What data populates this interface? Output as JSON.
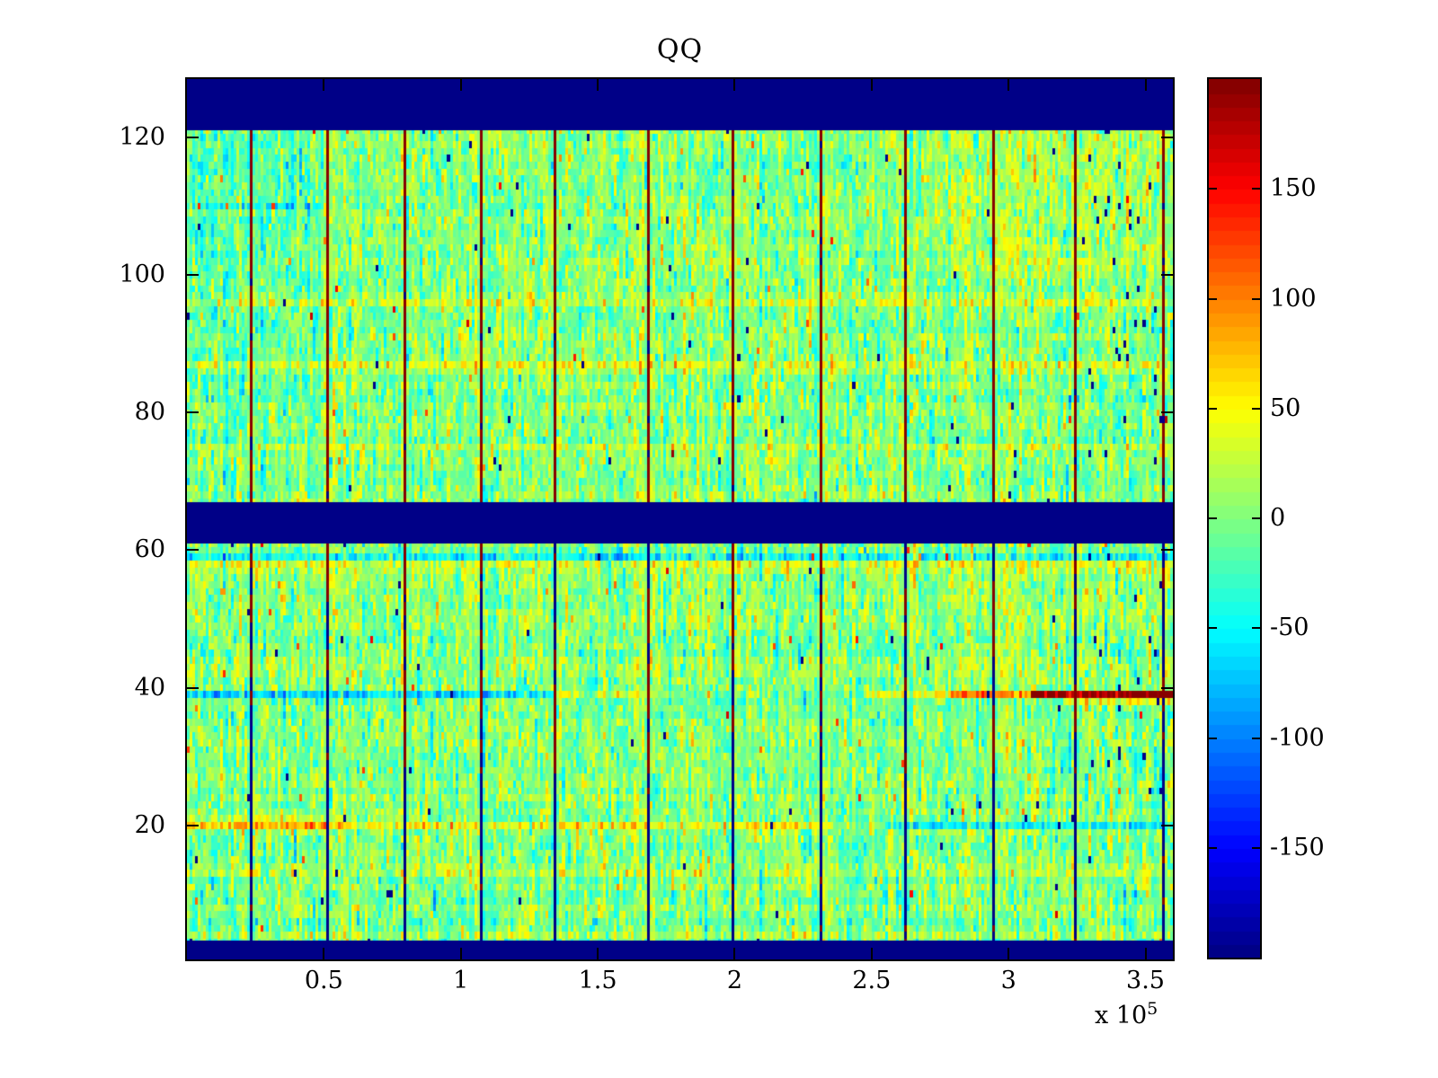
{
  "figure": {
    "background": "#ffffff",
    "frame_color": "#000000",
    "text_color": "#000000"
  },
  "chart_data": {
    "type": "heatmap",
    "title": "QQ",
    "colormap": "jet",
    "colormap_steps": 64,
    "clim": [
      -200,
      200
    ],
    "grid": false,
    "legend": "colorbar-right",
    "x_axis": {
      "range": [
        0,
        360000
      ],
      "ticks": [
        50000,
        100000,
        150000,
        200000,
        250000,
        300000,
        350000
      ],
      "tick_labels": [
        "0.5",
        "1",
        "1.5",
        "2",
        "2.5",
        "3",
        "3.5"
      ],
      "offset_base": "x 10",
      "offset_exp": "5"
    },
    "y_axis": {
      "range": [
        0.5,
        128.5
      ],
      "ticks": [
        20,
        40,
        60,
        80,
        100,
        120
      ],
      "tick_labels": [
        "20",
        "40",
        "60",
        "80",
        "100",
        "120"
      ]
    },
    "colorbar": {
      "ticks": [
        150,
        100,
        50,
        0,
        -50,
        -100,
        -150
      ],
      "tick_labels": [
        "150",
        "100",
        "50",
        "0",
        "-50",
        "-100",
        "-150"
      ]
    },
    "matrix": {
      "rows": 128,
      "cols": 360,
      "blank_band_row_ranges": [
        [
          0.5,
          3.2
        ],
        [
          60.95,
          66.95
        ],
        [
          121.1,
          128.5
        ]
      ],
      "vertical_line_x": [
        23000,
        51000,
        79000,
        107000,
        134000,
        168000,
        199000,
        231000,
        262000,
        294000,
        324000,
        356000
      ],
      "row_streaks": [
        {
          "row": 20,
          "segments": [
            [
              0,
              60000,
              75
            ],
            [
              60000,
              230000,
              38
            ],
            [
              230000,
              255000,
              5
            ],
            [
              255000,
              360000,
              -52
            ]
          ]
        },
        {
          "row": 21,
          "segments": [
            [
              0,
              60000,
              26
            ]
          ]
        },
        {
          "row": 39,
          "segments": [
            [
              0,
              135000,
              -72
            ],
            [
              135000,
              178000,
              15
            ],
            [
              178000,
              248000,
              -18
            ],
            [
              248000,
              278000,
              40
            ],
            [
              278000,
              308000,
              85
            ],
            [
              308000,
              360000,
              195
            ]
          ]
        },
        {
          "row": 38,
          "segments": [
            [
              320000,
              360000,
              55
            ]
          ]
        },
        {
          "row": 59,
          "segments": [
            [
              0,
              360000,
              -45
            ]
          ]
        },
        {
          "row": 60,
          "segments": [
            [
              0,
              360000,
              -10
            ]
          ]
        },
        {
          "row": 58,
          "segments": [
            [
              0,
              360000,
              28
            ]
          ]
        },
        {
          "row": 57,
          "segments": [
            [
              0,
              360000,
              24
            ]
          ]
        },
        {
          "row": 47,
          "segments": [
            [
              0,
              360000,
              -12
            ]
          ]
        },
        {
          "row": 96,
          "segments": [
            [
              0,
              360000,
              30
            ]
          ]
        },
        {
          "row": 87,
          "segments": [
            [
              0,
              360000,
              30
            ]
          ]
        },
        {
          "row": 86,
          "segments": [
            [
              0,
              360000,
              14
            ]
          ]
        },
        {
          "row": 75,
          "segments": [
            [
              0,
              360000,
              16
            ]
          ]
        },
        {
          "row": 13,
          "segments": [
            [
              0,
              360000,
              22
            ]
          ]
        },
        {
          "row": 8,
          "segments": [
            [
              0,
              360000,
              18
            ]
          ]
        },
        {
          "row": 4,
          "segments": [
            [
              0,
              360000,
              20
            ]
          ]
        },
        {
          "row": 110,
          "segments": [
            [
              0,
              50000,
              -22
            ]
          ]
        },
        {
          "row": 108,
          "segments": [
            [
              0,
              50000,
              -18
            ]
          ]
        }
      ],
      "region_offsets": [
        {
          "rows": [
            100,
            121
          ],
          "x": [
            0,
            45000
          ],
          "offset": -14
        },
        {
          "rows": [
            68,
            99
          ],
          "x": [
            0,
            50000
          ],
          "offset": -7
        },
        {
          "rows": [
            100,
            121
          ],
          "x": [
            270000,
            360000
          ],
          "offset": 13
        },
        {
          "rows": [
            40,
            60
          ],
          "x": [
            285000,
            360000
          ],
          "offset": 7
        },
        {
          "rows": [
            4,
            12
          ],
          "x": [
            0,
            360000
          ],
          "offset": -5
        }
      ],
      "noise": {
        "mean": 4,
        "run_std": 22,
        "run_keep_prob": 0.55,
        "cell_std": 13,
        "col_std": 7,
        "row_std": 5,
        "speckle_neg_prob": 0.0025,
        "speckle_pos_prob": 0.003,
        "extreme": 205,
        "upper_line_red_prob": 0.94,
        "lower_line_flip_prob": 0.22
      },
      "seed": 1337
    }
  }
}
